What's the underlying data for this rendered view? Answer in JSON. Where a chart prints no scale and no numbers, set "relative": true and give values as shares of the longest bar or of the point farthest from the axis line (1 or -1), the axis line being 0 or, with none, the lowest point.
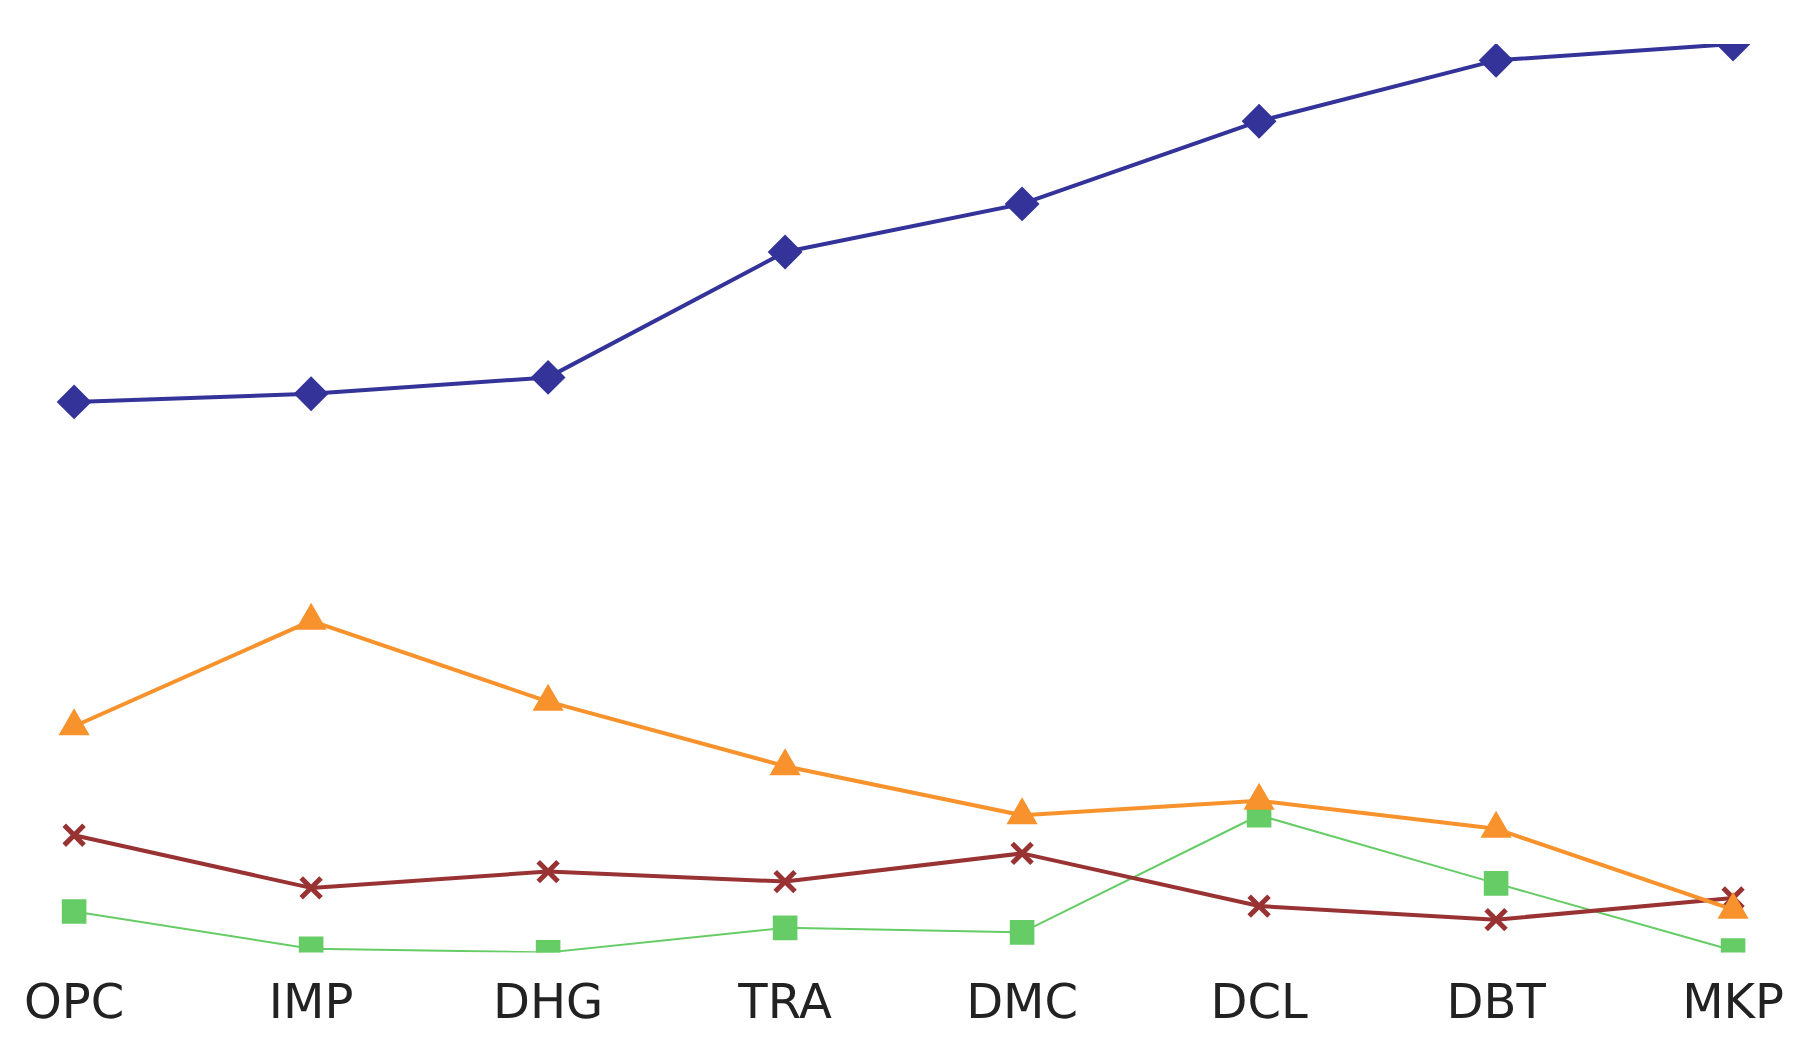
{
  "chart_data": {
    "type": "line",
    "relative": true,
    "grid": false,
    "legend": false,
    "categories": [
      "OPC",
      "IMP",
      "DHG",
      "TRA",
      "DMC",
      "DCL",
      "DBT",
      "MKP"
    ],
    "series": [
      {
        "color": "#333399",
        "marker": "diamond",
        "values": [
          0.606,
          0.615,
          0.633,
          0.771,
          0.824,
          0.915,
          0.982,
          1
        ]
      },
      {
        "color": "#f7922c",
        "marker": "triangle",
        "values": [
          0.249,
          0.365,
          0.276,
          0.205,
          0.151,
          0.167,
          0.136,
          0.047
        ]
      },
      {
        "color": "#993333",
        "marker": "cross",
        "values": [
          0.129,
          0.071,
          0.089,
          0.078,
          0.109,
          0.051,
          0.036,
          0.06
        ]
      },
      {
        "color": "#66cc66",
        "marker": "square",
        "values": [
          0.045,
          0.004,
          0,
          0.027,
          0.022,
          0.151,
          0.076,
          0.002
        ]
      }
    ]
  }
}
